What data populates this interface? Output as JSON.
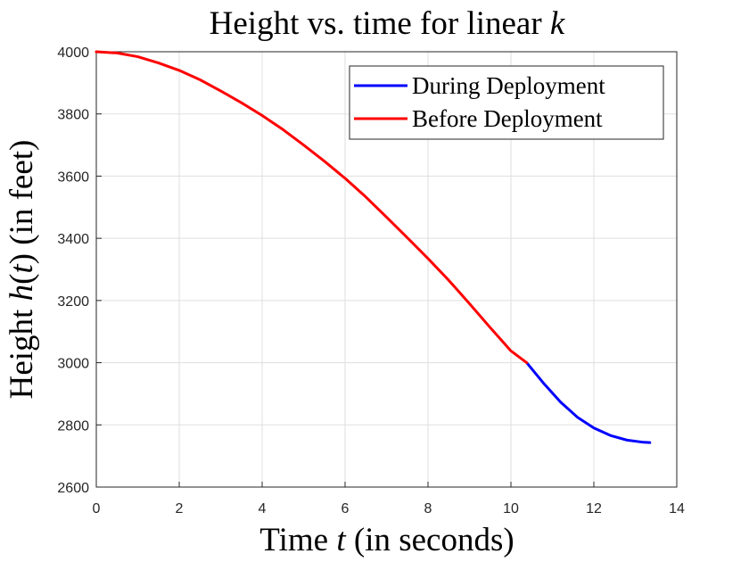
{
  "chart_data": {
    "type": "line",
    "title": "Height vs. time for linear k",
    "title_parts": [
      "Height vs. time for linear ",
      "k"
    ],
    "xlabel": "Time t (in seconds)",
    "xlabel_parts": [
      "Time ",
      "t",
      " (in seconds)"
    ],
    "ylabel": "Height h(t) (in feet)",
    "ylabel_parts": [
      "Height ",
      "h",
      "(",
      "t",
      ") (in feet)"
    ],
    "xlim": [
      0,
      14
    ],
    "ylim": [
      2600,
      4000
    ],
    "xticks": [
      0,
      2,
      4,
      6,
      8,
      10,
      12,
      14
    ],
    "yticks": [
      2600,
      2800,
      3000,
      3200,
      3400,
      3600,
      3800,
      4000
    ],
    "xtick_labels": [
      "0",
      "2",
      "4",
      "6",
      "8",
      "10",
      "12",
      "14"
    ],
    "ytick_labels": [
      "2600",
      "2800",
      "3000",
      "3200",
      "3400",
      "3600",
      "3800",
      "4000"
    ],
    "grid": true,
    "legend_position": "top-right",
    "series": [
      {
        "name": "During Deployment",
        "color": "#0000ff",
        "x": [
          10.38,
          10.8,
          11.2,
          11.6,
          12.0,
          12.4,
          12.8,
          13.2,
          13.35
        ],
        "y": [
          3000,
          2932,
          2873,
          2825,
          2790,
          2766,
          2751,
          2744,
          2743
        ]
      },
      {
        "name": "Before Deployment",
        "color": "#ff0000",
        "x": [
          0,
          0.5,
          1,
          1.5,
          2,
          2.5,
          3,
          3.5,
          4,
          4.5,
          5,
          5.5,
          6,
          6.5,
          7,
          7.5,
          8,
          8.5,
          9,
          9.5,
          10,
          10.38
        ],
        "y": [
          4000,
          3996,
          3984,
          3964,
          3940,
          3910,
          3874,
          3836,
          3795,
          3750,
          3700,
          3648,
          3593,
          3533,
          3468,
          3402,
          3335,
          3265,
          3190,
          3113,
          3038,
          3000
        ]
      }
    ]
  }
}
